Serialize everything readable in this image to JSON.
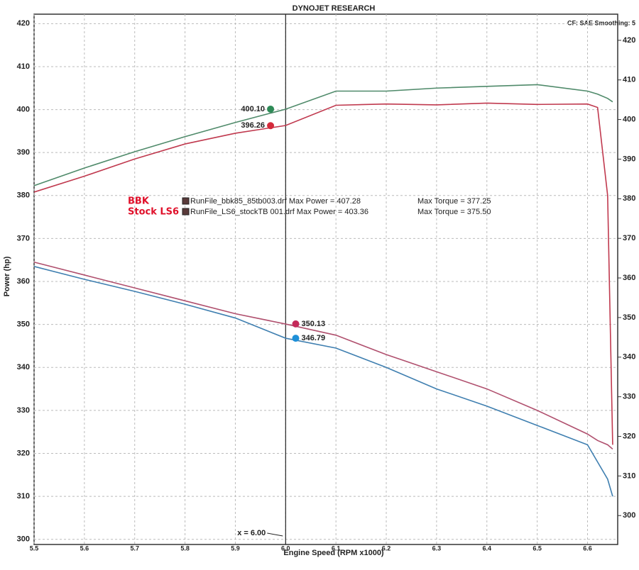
{
  "chart_data": {
    "type": "line",
    "title": "DYNOJET RESEARCH",
    "subtitle": "CF: SAE  Smoothing: 5",
    "x_label": "Engine Speed (RPM x1000)",
    "y_label": "Power (hp)",
    "x": [
      5.5,
      5.6,
      5.7,
      5.8,
      5.9,
      6.0,
      6.1,
      6.2,
      6.3,
      6.4,
      6.5,
      6.6,
      6.62,
      6.64,
      6.65
    ],
    "series": [
      {
        "color": "#4f8a6a",
        "values": [
          382.3,
          386.4,
          390.2,
          393.7,
          397,
          400.1,
          404.3,
          404.3,
          405,
          405.4,
          405.8,
          404.3,
          403.6,
          402.6,
          401.8
        ]
      },
      {
        "color": "#c0394e",
        "values": [
          380.8,
          384.5,
          388.5,
          392,
          394.5,
          396.3,
          401,
          401.3,
          401.1,
          401.5,
          401.2,
          401.3,
          400.5,
          380,
          322
        ]
      },
      {
        "color": "#b0506e",
        "values": [
          364.5,
          361.5,
          358.5,
          355.5,
          352.5,
          350.1,
          347.5,
          343,
          339,
          335,
          330,
          324.5,
          323,
          322,
          321
        ]
      },
      {
        "color": "#3f7fb0",
        "values": [
          363.5,
          360.5,
          357.7,
          354.7,
          351.5,
          346.8,
          344.5,
          340,
          335,
          331,
          326.5,
          322,
          318,
          314,
          310
        ]
      }
    ],
    "markers": [
      {
        "x": 5.97,
        "y": 400.1,
        "label": "400.10",
        "color": "#2e8b57"
      },
      {
        "x": 5.97,
        "y": 396.26,
        "label": "396.26",
        "color": "#d42a3a"
      },
      {
        "x": 6.02,
        "y": 350.13,
        "label": "350.13",
        "color": "#c42a5a"
      },
      {
        "x": 6.02,
        "y": 346.79,
        "label": "346.79",
        "color": "#1e90d8"
      }
    ],
    "cursor": {
      "x": 6.0,
      "label": "x = 6.00"
    },
    "runs": [
      {
        "name": "BBK",
        "file": "RunFile_bbk85_85tb003.drf Max Power = 407.28",
        "torque": "Max Torque = 377.25"
      },
      {
        "name": "Stock LS6",
        "file": "RunFile_LS6_stockTB 001.drf Max Power = 403.36",
        "torque": "Max Torque = 375.50"
      }
    ],
    "xlim": [
      5.5,
      6.66
    ],
    "xticks": [
      5.5,
      5.6,
      5.7,
      5.8,
      5.9,
      {
        "value": 6,
        "label": "6.0"
      },
      6.1,
      6.2,
      6.3,
      6.4,
      6.5,
      6.6
    ],
    "ylim": [
      298.8,
      422.2
    ],
    "yticks": [
      300,
      310,
      320,
      330,
      340,
      350,
      360,
      370,
      380,
      390,
      400,
      410,
      420
    ],
    "y2lim": [
      292.7,
      426.6
    ],
    "y2ticks": [
      300,
      310,
      320,
      330,
      340,
      350,
      360,
      370,
      380,
      390,
      400,
      410,
      420
    ],
    "grid": true
  }
}
